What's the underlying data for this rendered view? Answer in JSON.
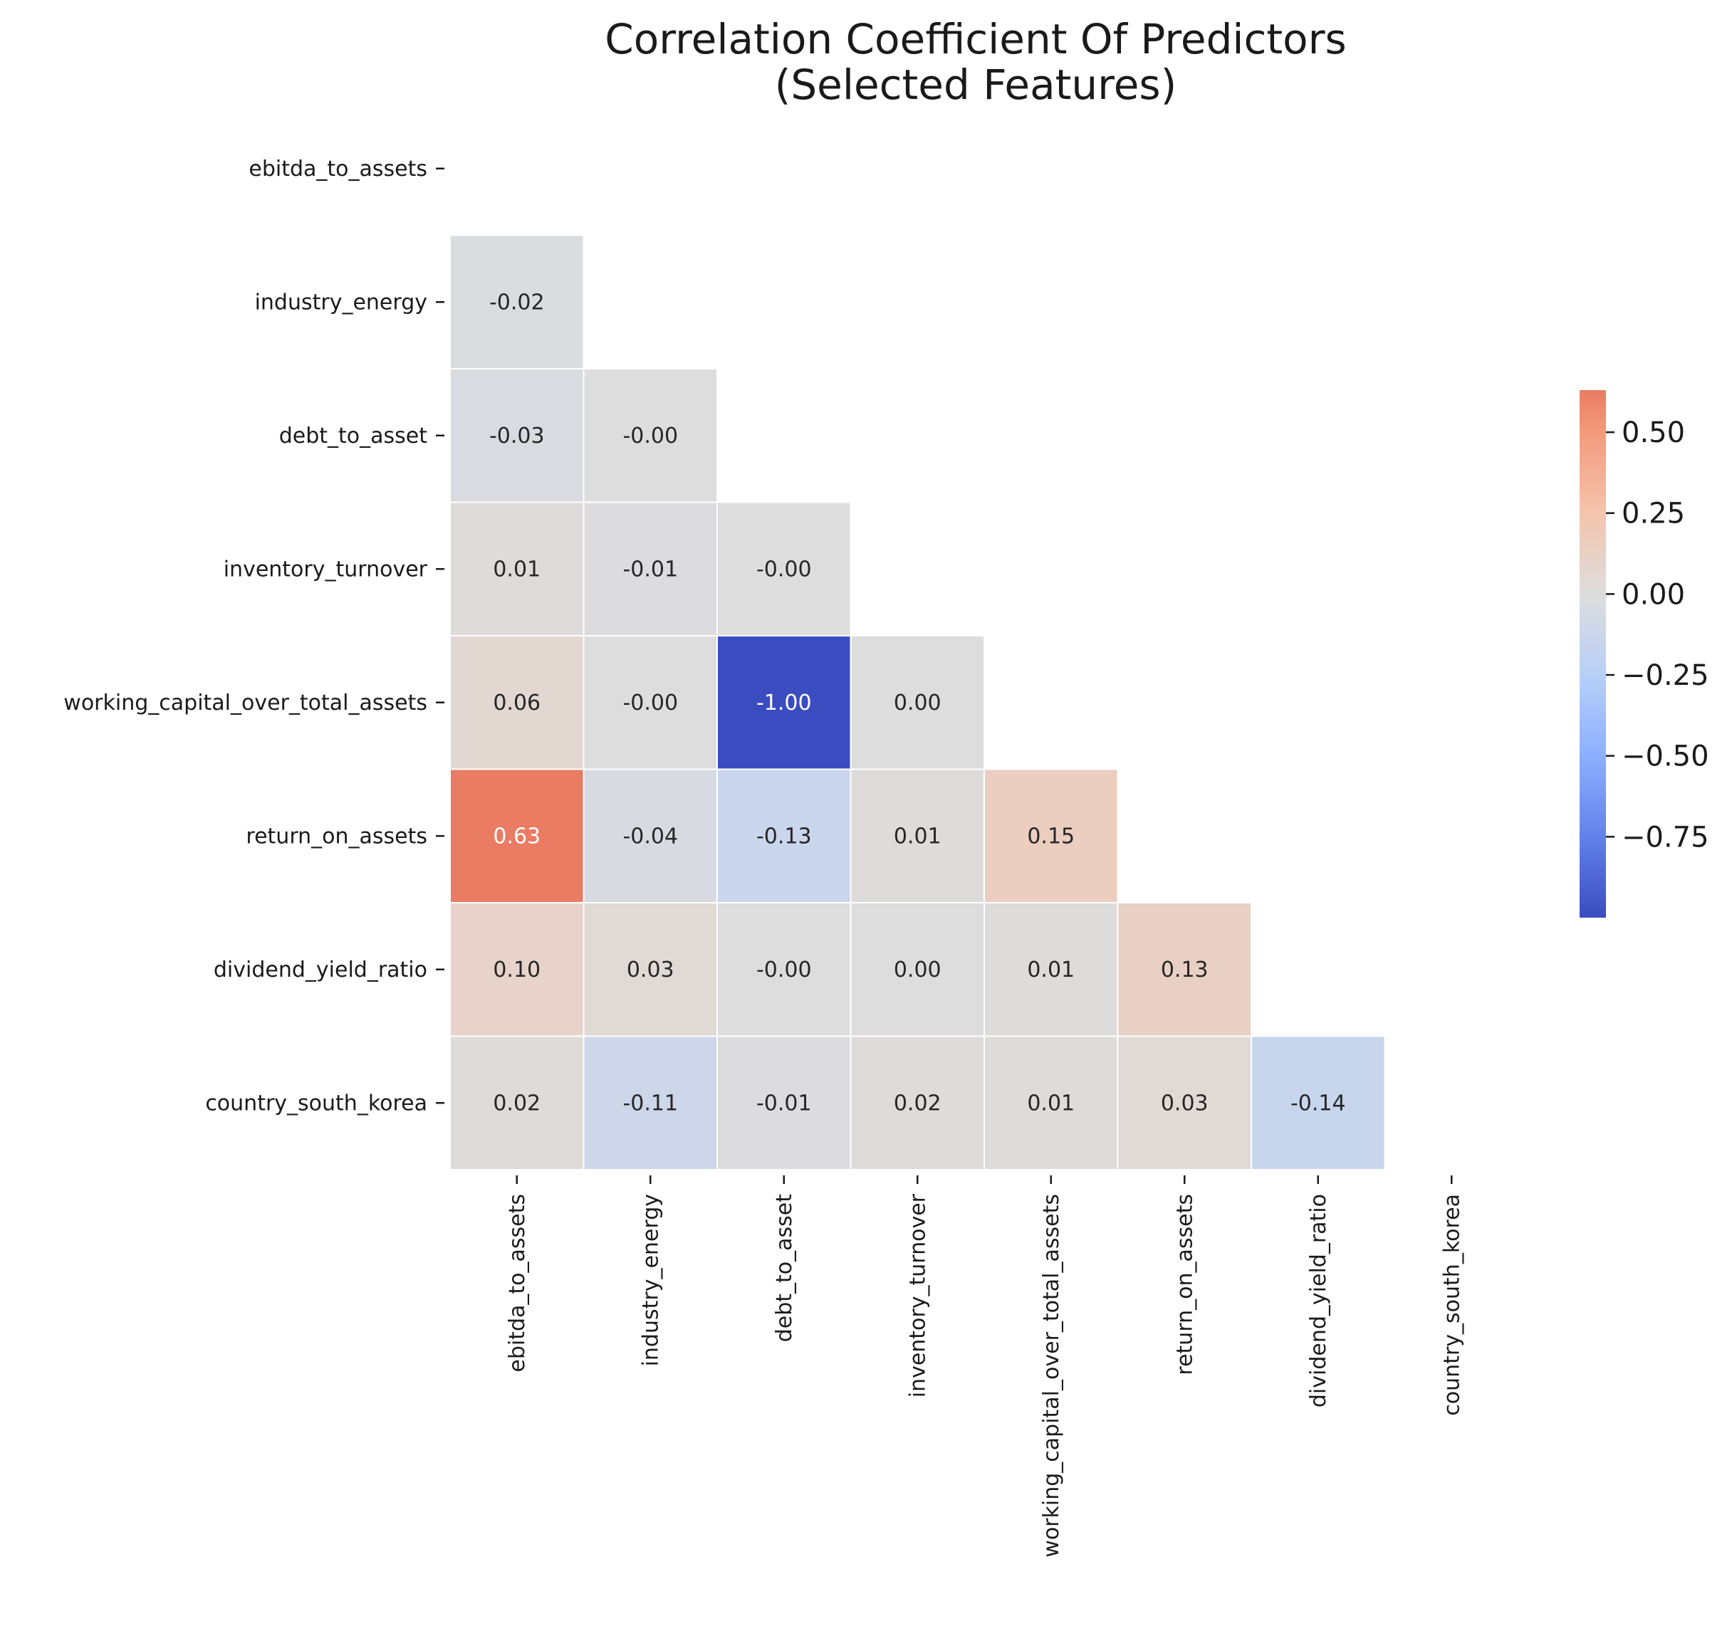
{
  "chart_data": {
    "type": "heatmap",
    "title": "Correlation Coefficient Of Predictors\n(Selected Features)",
    "row_labels": [
      "ebitda_to_assets",
      "industry_energy",
      "debt_to_asset",
      "inventory_turnover",
      "working_capital_over_total_assets",
      "return_on_assets",
      "dividend_yield_ratio",
      "country_south_korea"
    ],
    "col_labels": [
      "ebitda_to_assets",
      "industry_energy",
      "debt_to_asset",
      "inventory_turnover",
      "working_capital_over_total_assets",
      "return_on_assets",
      "dividend_yield_ratio",
      "country_south_korea"
    ],
    "mask": "upper triangle including diagonal",
    "values": [
      [
        null,
        null,
        null,
        null,
        null,
        null,
        null,
        null
      ],
      [
        -0.02,
        null,
        null,
        null,
        null,
        null,
        null,
        null
      ],
      [
        -0.03,
        -0.0,
        null,
        null,
        null,
        null,
        null,
        null
      ],
      [
        0.01,
        -0.01,
        -0.0,
        null,
        null,
        null,
        null,
        null
      ],
      [
        0.06,
        -0.0,
        -1.0,
        0.0,
        null,
        null,
        null,
        null
      ],
      [
        0.63,
        -0.04,
        -0.13,
        0.01,
        0.15,
        null,
        null,
        null
      ],
      [
        0.1,
        0.03,
        -0.0,
        0.0,
        0.01,
        0.13,
        null,
        null
      ],
      [
        0.02,
        -0.11,
        -0.01,
        0.02,
        0.01,
        0.03,
        -0.14,
        null
      ]
    ],
    "labels": [
      [
        null,
        null,
        null,
        null,
        null,
        null,
        null,
        null
      ],
      [
        "-0.02",
        null,
        null,
        null,
        null,
        null,
        null,
        null
      ],
      [
        "-0.03",
        "-0.00",
        null,
        null,
        null,
        null,
        null,
        null
      ],
      [
        "0.01",
        "-0.01",
        "-0.00",
        null,
        null,
        null,
        null,
        null
      ],
      [
        "0.06",
        "-0.00",
        "-1.00",
        "0.00",
        null,
        null,
        null,
        null
      ],
      [
        "0.63",
        "-0.04",
        "-0.13",
        "0.01",
        "0.15",
        null,
        null,
        null
      ],
      [
        "0.10",
        "0.03",
        "-0.00",
        "0.00",
        "0.01",
        "0.13",
        null,
        null
      ],
      [
        "0.02",
        "-0.11",
        "-0.01",
        "0.02",
        "0.01",
        "0.03",
        "-0.14",
        null
      ]
    ],
    "colormap": "coolwarm",
    "vmin": -1.0,
    "vmax": 0.63,
    "colorbar": {
      "placement": "right",
      "ticks": [
        0.5,
        0.25,
        0.0,
        -0.25,
        -0.5,
        -0.75
      ],
      "tick_labels": [
        "0.50",
        "0.25",
        "0.00",
        "−0.25",
        "−0.50",
        "−0.75"
      ]
    },
    "grid": false,
    "cell_border_color": "#ffffff"
  }
}
